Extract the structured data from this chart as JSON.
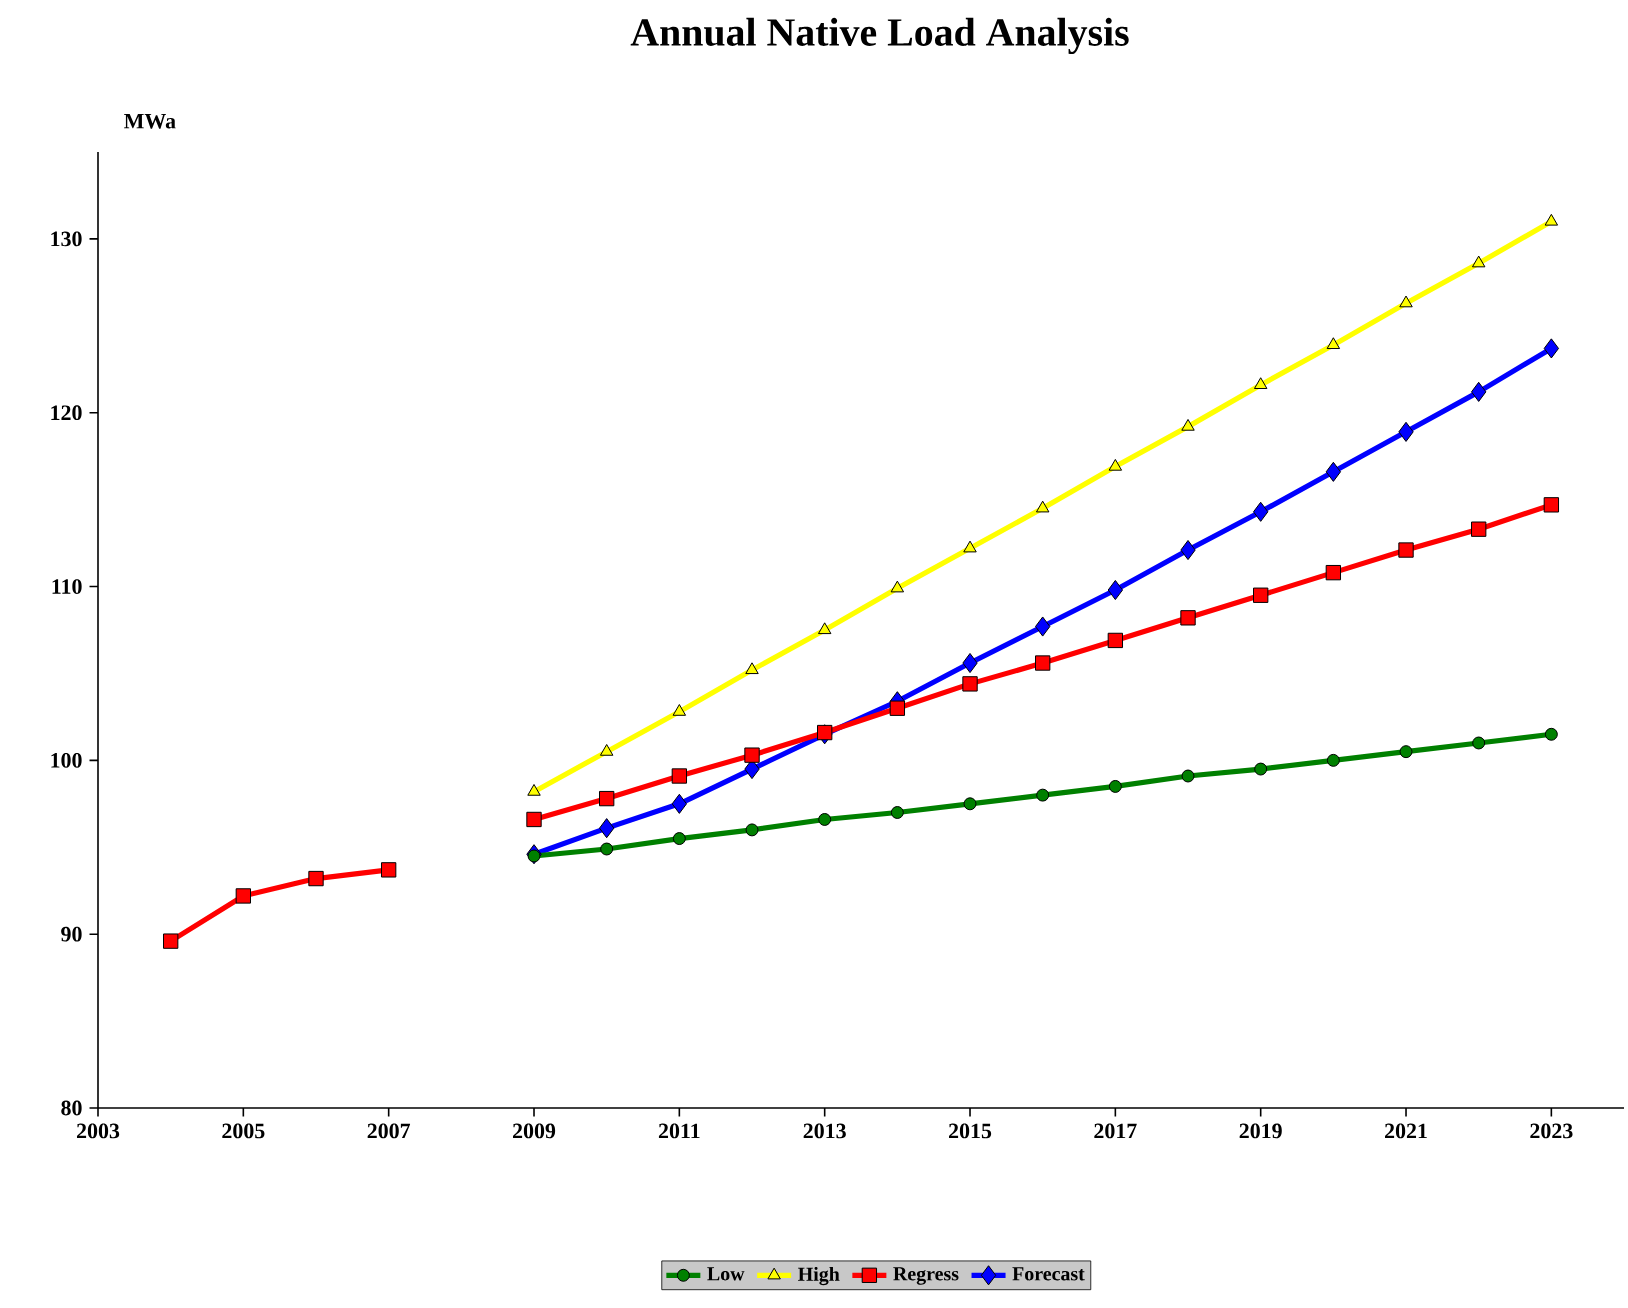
{
  "chart_data": {
    "type": "line",
    "title": "Annual Native Load Analysis",
    "ylabel": "MWa",
    "xlim": [
      2003,
      2024
    ],
    "xticks": [
      2003,
      2005,
      2007,
      2009,
      2011,
      2013,
      2015,
      2017,
      2019,
      2021,
      2023
    ],
    "ylim": [
      80,
      135
    ],
    "yticks": [
      80,
      90,
      100,
      110,
      120,
      130
    ],
    "grid": false,
    "legend": "bottom",
    "series": [
      {
        "name": "Low",
        "color": "#008000",
        "marker": "circle",
        "x": [
          2009,
          2010,
          2011,
          2012,
          2013,
          2014,
          2015,
          2016,
          2017,
          2018,
          2019,
          2020,
          2021,
          2022,
          2023
        ],
        "values": [
          94.5,
          94.9,
          95.5,
          96.0,
          96.6,
          97.0,
          97.5,
          98.0,
          98.5,
          99.1,
          99.5,
          100.0,
          100.5,
          101.0,
          101.5
        ]
      },
      {
        "name": "High",
        "color": "#ffff00",
        "marker": "triangle",
        "x": [
          2009,
          2010,
          2011,
          2012,
          2013,
          2014,
          2015,
          2016,
          2017,
          2018,
          2019,
          2020,
          2021,
          2022,
          2023
        ],
        "values": [
          98.2,
          100.5,
          102.8,
          105.2,
          107.5,
          109.9,
          112.2,
          114.5,
          116.9,
          119.2,
          121.6,
          123.9,
          126.3,
          128.6,
          131.0
        ]
      },
      {
        "name": "Regress",
        "color": "#ff0000",
        "marker": "square",
        "x": [
          2004,
          2005,
          2006,
          2007,
          2008,
          2009,
          2010,
          2011,
          2012,
          2013,
          2014,
          2015,
          2016,
          2017,
          2018,
          2019,
          2020,
          2021,
          2022,
          2023
        ],
        "values": [
          89.6,
          92.2,
          93.2,
          93.7,
          null,
          96.6,
          97.8,
          99.1,
          100.3,
          101.6,
          103.0,
          104.4,
          105.6,
          106.9,
          108.2,
          109.5,
          110.8,
          112.1,
          113.3,
          114.7
        ]
      },
      {
        "name": "Forecast",
        "color": "#0000ff",
        "marker": "diamond",
        "x": [
          2009,
          2010,
          2011,
          2012,
          2013,
          2014,
          2015,
          2016,
          2017,
          2018,
          2019,
          2020,
          2021,
          2022,
          2023
        ],
        "values": [
          94.6,
          96.1,
          97.5,
          99.5,
          101.5,
          103.4,
          105.6,
          107.7,
          109.8,
          112.1,
          114.3,
          116.6,
          118.9,
          121.2,
          123.7
        ]
      }
    ]
  }
}
